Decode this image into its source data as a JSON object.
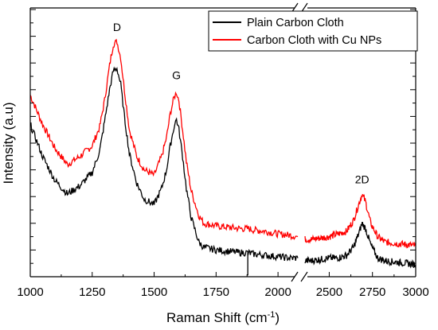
{
  "chart_data": {
    "type": "line",
    "title": "",
    "xlabel": "Raman Shift (cm⁻¹)",
    "ylabel": "Intensity (a.u)",
    "axis_break": [
      2080,
      2360
    ],
    "xlim_left": [
      1000,
      2080
    ],
    "xlim_right": [
      2360,
      3000
    ],
    "ylim": [
      0,
      100
    ],
    "y_tick_labels_shown": false,
    "x_ticks": [
      1000,
      1250,
      1500,
      1750,
      2000,
      2500,
      2750,
      3000
    ],
    "x_tick_labels": [
      "1000",
      "1250",
      "1500",
      "1750",
      "2000",
      "2500",
      "2750",
      "3000"
    ],
    "grid": false,
    "legend_position": "top-right",
    "series": [
      {
        "name": "Plain Carbon Cloth",
        "color": "#000000",
        "x": [
          1000,
          1050,
          1100,
          1150,
          1200,
          1250,
          1280,
          1300,
          1320,
          1335,
          1350,
          1365,
          1380,
          1400,
          1430,
          1460,
          1500,
          1530,
          1550,
          1565,
          1580,
          1590,
          1600,
          1615,
          1630,
          1650,
          1680,
          1700,
          1750,
          1800,
          1850,
          1880,
          1900,
          1950,
          2000,
          2050,
          2080,
          2360,
          2400,
          2450,
          2500,
          2550,
          2600,
          2640,
          2670,
          2690,
          2710,
          2740,
          2780,
          2820,
          2880,
          2950,
          3000
        ],
        "y": [
          57,
          45,
          36,
          31,
          34,
          39,
          47,
          58,
          70,
          77,
          78,
          72,
          60,
          46,
          35,
          29,
          27,
          33,
          40,
          49,
          56,
          59,
          55,
          45,
          33,
          22,
          13,
          11,
          10,
          9.5,
          9,
          9,
          8.5,
          8,
          7.5,
          7,
          7,
          6,
          6,
          6.5,
          7,
          7,
          8,
          11,
          16,
          20,
          18,
          12,
          7,
          6,
          5.5,
          5,
          4.5
        ]
      },
      {
        "name": "Carbon Cloth with Cu NPs",
        "color": "#ff0000",
        "x": [
          1000,
          1050,
          1100,
          1150,
          1200,
          1250,
          1280,
          1300,
          1320,
          1335,
          1350,
          1365,
          1380,
          1400,
          1430,
          1460,
          1500,
          1530,
          1550,
          1565,
          1580,
          1590,
          1600,
          1615,
          1630,
          1650,
          1680,
          1700,
          1750,
          1800,
          1850,
          1880,
          1900,
          1950,
          2000,
          2050,
          2080,
          2360,
          2400,
          2450,
          2500,
          2550,
          2600,
          2640,
          2670,
          2690,
          2710,
          2740,
          2780,
          2820,
          2880,
          2950,
          3000
        ],
        "y": [
          68,
          57,
          48,
          42,
          45,
          49,
          56,
          66,
          79,
          87,
          88,
          82,
          70,
          55,
          45,
          40,
          38,
          45,
          52,
          61,
          67,
          69,
          66,
          55,
          43,
          32,
          23,
          20,
          19,
          18.5,
          18,
          18,
          17.5,
          17,
          16,
          15.5,
          15,
          14,
          14,
          14.5,
          15,
          16,
          17,
          21,
          27,
          31,
          28,
          20,
          15,
          13,
          12.5,
          12,
          11.5
        ]
      }
    ],
    "annotations": [
      {
        "text": "D",
        "x": 1350,
        "y": 92
      },
      {
        "text": "G",
        "x": 1590,
        "y": 74
      },
      {
        "text": "2D",
        "x": 2690,
        "y": 35
      }
    ]
  }
}
